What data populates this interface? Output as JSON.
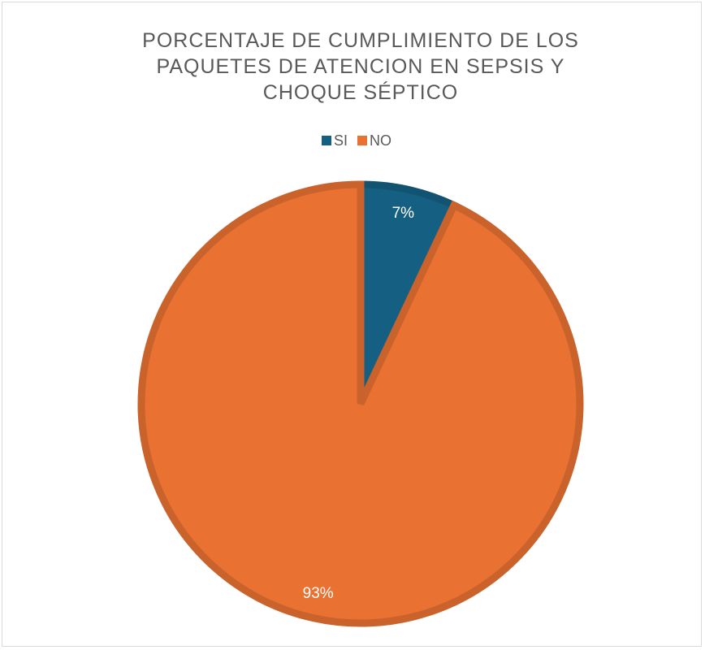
{
  "chart_data": {
    "type": "pie",
    "title": "PORCENTAJE DE CUMPLIMIENTO DE LOS PAQUETES DE ATENCION EN SEPSIS Y CHOQUE SÉPTICO",
    "categories": [
      "SI",
      "NO"
    ],
    "values": [
      7,
      93
    ],
    "value_labels": [
      "7%",
      "93%"
    ],
    "colors": [
      "#156082",
      "#e97132"
    ],
    "legend": "top"
  }
}
